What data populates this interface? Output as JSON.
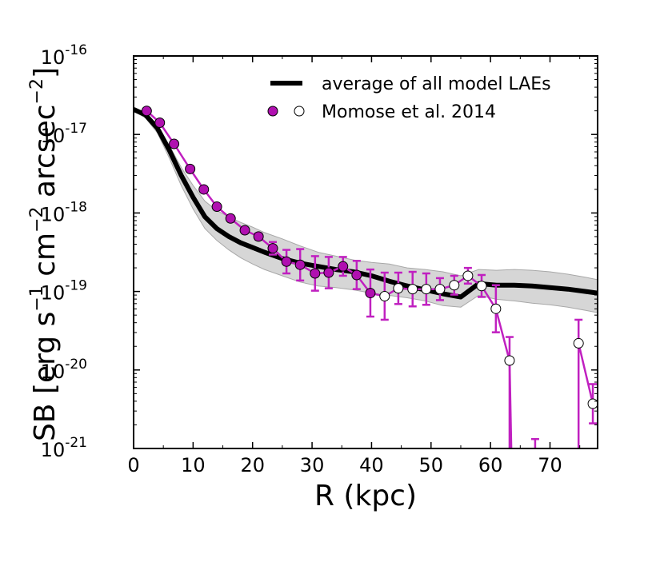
{
  "chart_data": {
    "type": "line",
    "xlabel": "R (kpc)",
    "ylabel_parts": {
      "a": "SB [erg s",
      "b": "−1",
      "c": " cm",
      "d": "−2",
      "e": " arcsec",
      "f": "−2",
      "g": "]"
    },
    "xlim": [
      0,
      78
    ],
    "ylim_log10": [
      -21,
      -16
    ],
    "x_ticks": [
      0,
      10,
      20,
      30,
      40,
      50,
      60,
      70
    ],
    "y_ticks": [
      {
        "exp": -21,
        "base": "10",
        "sup": "-21"
      },
      {
        "exp": -20,
        "base": "10",
        "sup": "-20"
      },
      {
        "exp": -19,
        "base": "10",
        "sup": "-19"
      },
      {
        "exp": -18,
        "base": "10",
        "sup": "-18"
      },
      {
        "exp": -17,
        "base": "10",
        "sup": "-17"
      },
      {
        "exp": -16,
        "base": "10",
        "sup": "-16"
      }
    ],
    "colors": {
      "model": "#000000",
      "band": "#d6d6d6",
      "band_edge": "#a8a8a8",
      "observed": "#c020c0",
      "observed_fill": "#b010b0",
      "open_fill": "#ffffff"
    },
    "series": [
      {
        "name": "average of all model LAEs",
        "style": "thick-line",
        "x": [
          0,
          2,
          4,
          6,
          8,
          10,
          12,
          14,
          16,
          18,
          20,
          22,
          25,
          28,
          31,
          34,
          37,
          40,
          43,
          46,
          49,
          52,
          55,
          58,
          61,
          64,
          67,
          70,
          73,
          76,
          78
        ],
        "log_y": [
          -16.68,
          -16.75,
          -16.92,
          -17.2,
          -17.52,
          -17.8,
          -18.05,
          -18.2,
          -18.3,
          -18.38,
          -18.44,
          -18.5,
          -18.58,
          -18.64,
          -18.68,
          -18.72,
          -18.75,
          -18.8,
          -18.87,
          -18.93,
          -18.98,
          -19.03,
          -19.07,
          -18.9,
          -18.92,
          -18.92,
          -18.93,
          -18.95,
          -18.97,
          -19.0,
          -19.02
        ],
        "band_upper": [
          -16.66,
          -16.72,
          -16.88,
          -17.14,
          -17.42,
          -17.65,
          -17.85,
          -17.97,
          -18.05,
          -18.12,
          -18.18,
          -18.25,
          -18.33,
          -18.42,
          -18.5,
          -18.55,
          -18.6,
          -18.63,
          -18.65,
          -18.7,
          -18.72,
          -18.75,
          -18.8,
          -18.72,
          -18.73,
          -18.72,
          -18.73,
          -18.75,
          -18.78,
          -18.82,
          -18.85
        ],
        "band_lower": [
          -16.7,
          -16.79,
          -16.98,
          -17.3,
          -17.65,
          -17.95,
          -18.2,
          -18.35,
          -18.47,
          -18.57,
          -18.65,
          -18.72,
          -18.8,
          -18.88,
          -18.93,
          -18.95,
          -18.98,
          -19.02,
          -19.05,
          -19.08,
          -19.12,
          -19.18,
          -19.2,
          -19.05,
          -19.1,
          -19.12,
          -19.15,
          -19.17,
          -19.2,
          -19.24,
          -19.27
        ]
      },
      {
        "name": "Momose et al. 2014",
        "style": "markers-with-errorbars",
        "points": [
          {
            "x": 2.2,
            "log_y": -16.7,
            "open": false,
            "err": 0
          },
          {
            "x": 4.4,
            "log_y": -16.85,
            "open": false,
            "err": 0
          },
          {
            "x": 6.8,
            "log_y": -17.12,
            "open": false,
            "err": 0
          },
          {
            "x": 9.5,
            "log_y": -17.44,
            "open": false,
            "err": 0
          },
          {
            "x": 11.8,
            "log_y": -17.7,
            "open": false,
            "err": 0
          },
          {
            "x": 14.0,
            "log_y": -17.92,
            "open": false,
            "err": 0
          },
          {
            "x": 16.3,
            "log_y": -18.07,
            "open": false,
            "err": 0
          },
          {
            "x": 18.7,
            "log_y": -18.22,
            "open": false,
            "err": 0
          },
          {
            "x": 21.0,
            "log_y": -18.3,
            "open": false,
            "err": 0.04
          },
          {
            "x": 23.4,
            "log_y": -18.45,
            "open": false,
            "err": 0.08
          },
          {
            "x": 25.7,
            "log_y": -18.62,
            "open": false,
            "err": 0.15
          },
          {
            "x": 28.0,
            "log_y": -18.66,
            "open": false,
            "err": 0.2
          },
          {
            "x": 30.5,
            "log_y": -18.77,
            "open": false,
            "err": 0.22
          },
          {
            "x": 32.8,
            "log_y": -18.76,
            "open": false,
            "err": 0.2
          },
          {
            "x": 35.2,
            "log_y": -18.68,
            "open": false,
            "err": 0.12
          },
          {
            "x": 37.5,
            "log_y": -18.79,
            "open": false,
            "err": 0.18
          },
          {
            "x": 39.8,
            "log_y": -19.02,
            "open": false,
            "err": 0.3
          },
          {
            "x": 42.2,
            "log_y": -19.06,
            "open": true,
            "err": 0.3
          },
          {
            "x": 44.5,
            "log_y": -18.96,
            "open": true,
            "err": 0.2
          },
          {
            "x": 46.9,
            "log_y": -18.97,
            "open": true,
            "err": 0.22
          },
          {
            "x": 49.2,
            "log_y": -18.97,
            "open": true,
            "err": 0.2
          },
          {
            "x": 51.5,
            "log_y": -18.97,
            "open": true,
            "err": 0.14
          },
          {
            "x": 53.9,
            "log_y": -18.92,
            "open": true,
            "err": 0.12
          },
          {
            "x": 56.2,
            "log_y": -18.8,
            "open": true,
            "err": 0.1
          },
          {
            "x": 58.5,
            "log_y": -18.93,
            "open": true,
            "err": 0.14
          },
          {
            "x": 60.9,
            "log_y": -19.22,
            "open": true,
            "err": 0.3
          },
          {
            "x": 63.2,
            "log_y": -19.88,
            "open": true,
            "err": 0.3,
            "err_low_to_axis": true
          },
          {
            "x": 74.8,
            "log_y": -19.66,
            "open": true,
            "err": 0.3,
            "err_low_to_axis": true
          },
          {
            "x": 77.2,
            "log_y": -20.43,
            "open": true,
            "err": 0.25
          }
        ],
        "stray_errorbar": {
          "x": 67.5,
          "log_y_top": -20.88
        }
      }
    ],
    "legend": {
      "placement": "top-right",
      "entries": [
        {
          "label": "average of all model LAEs",
          "marker": "line"
        },
        {
          "label": "Momose et al. 2014",
          "marker": "filled-and-open-circles"
        }
      ]
    }
  }
}
